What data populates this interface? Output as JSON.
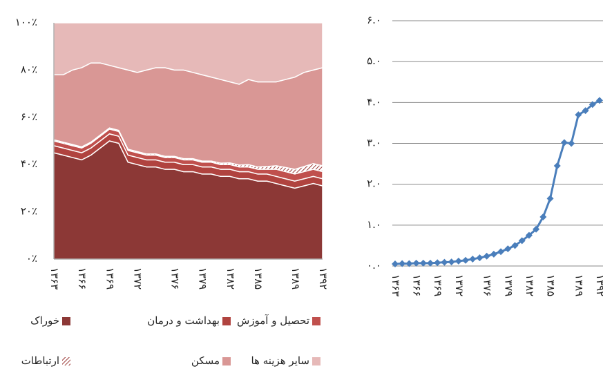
{
  "chart_data": [
    {
      "type": "area",
      "stacked": true,
      "categories": [
        "۱۳۶۳",
        null,
        null,
        "۱۳۶۶",
        null,
        null,
        "۱۳۶۹",
        null,
        null,
        "۱۳۷۲",
        null,
        null,
        null,
        "۱۳۷۶",
        null,
        null,
        "۱۳۷۹",
        null,
        null,
        "۱۳۸۲",
        null,
        null,
        "۱۳۸۵",
        null,
        null,
        null,
        "۱۳۸۹",
        null,
        null,
        "۱۳۹۲"
      ],
      "series": [
        {
          "name": "خوراک",
          "color": "#8c3836",
          "values": [
            45,
            44,
            43,
            42,
            44,
            47,
            50,
            49,
            41,
            40,
            39,
            39,
            38,
            38,
            37,
            37,
            36,
            36,
            35,
            35,
            34,
            34,
            33,
            33,
            32,
            31,
            30,
            31,
            32,
            31
          ]
        },
        {
          "name": "بهداشت و درمان",
          "color": "#b0433f",
          "values": [
            3,
            3,
            3,
            3,
            3,
            3,
            3,
            3,
            3,
            3,
            3,
            3,
            3,
            3,
            3,
            3,
            3,
            3,
            3,
            3,
            3,
            3,
            3,
            3,
            3,
            3,
            3,
            3,
            3,
            3
          ]
        },
        {
          "name": "تحصیل و آموزش",
          "color": "#c0504d",
          "values": [
            2,
            2,
            2,
            2,
            2,
            2,
            2,
            2,
            2,
            2,
            2,
            2,
            2,
            2,
            2,
            2,
            2,
            2,
            2,
            2,
            2,
            2,
            2,
            2,
            3,
            3,
            3,
            3,
            3,
            3
          ]
        },
        {
          "name": "ارتباطات",
          "color": "#9b3b38",
          "pattern": "hatch",
          "values": [
            0.5,
            0.5,
            0.5,
            0.5,
            0.5,
            0.5,
            0.5,
            0.5,
            0.5,
            0.5,
            0.5,
            0.5,
            0.5,
            0.5,
            0.5,
            0.5,
            0.5,
            0.5,
            0.6,
            0.7,
            0.8,
            1,
            1,
            1.2,
            1.5,
            1.8,
            2,
            2.2,
            2.4,
            2.5
          ]
        },
        {
          "name": "مسکن",
          "color": "#d99795",
          "values": [
            27.5,
            28.5,
            31.5,
            33.5,
            33.5,
            30.5,
            26.5,
            26.5,
            33.5,
            33.5,
            35.5,
            36.5,
            37.5,
            36.5,
            37.5,
            36.5,
            36.5,
            35.5,
            35.4,
            34.3,
            34.2,
            36,
            36,
            35.8,
            35.5,
            37.2,
            39,
            39.8,
            39.6,
            41.5
          ]
        },
        {
          "name": "سایر هزینه ها",
          "color": "#e6b9b8",
          "values": [
            22,
            22,
            20,
            19,
            17,
            17,
            18,
            19,
            20,
            21,
            20,
            19,
            19,
            20,
            20,
            21,
            22,
            23,
            24,
            25,
            26,
            24,
            25,
            25,
            25,
            24,
            23,
            21,
            20,
            19
          ]
        }
      ],
      "ylim": [
        0,
        100
      ],
      "yticks": [
        {
          "value": 0,
          "label": "۰٪"
        },
        {
          "value": 20,
          "label": "۲۰٪"
        },
        {
          "value": 40,
          "label": "۴۰٪"
        },
        {
          "value": 60,
          "label": "۶۰٪"
        },
        {
          "value": 80,
          "label": "۸۰٪"
        },
        {
          "value": 100,
          "label": "۱۰۰٪"
        }
      ],
      "grid": false
    },
    {
      "type": "line",
      "categories": [
        "۱۳۶۳",
        null,
        null,
        "۱۳۶۶",
        null,
        null,
        "۱۳۶۹",
        null,
        null,
        "۱۳۷۲",
        null,
        null,
        null,
        "۱۳۷۶",
        null,
        null,
        "۱۳۷۹",
        null,
        null,
        "۱۳۸۲",
        null,
        null,
        "۱۳۸۵",
        null,
        null,
        null,
        "۱۳۸۹",
        null,
        null,
        "۱۳۹۲"
      ],
      "series": [
        {
          "color": "#4a7ebb",
          "values": [
            0.05,
            0.06,
            0.06,
            0.07,
            0.07,
            0.07,
            0.08,
            0.09,
            0.1,
            0.12,
            0.14,
            0.17,
            0.2,
            0.24,
            0.29,
            0.35,
            0.42,
            0.5,
            0.62,
            0.75,
            0.9,
            1.2,
            1.65,
            2.45,
            3.02,
            3.0,
            3.7,
            3.8,
            3.95,
            4.05
          ]
        }
      ],
      "ylim": [
        0,
        6
      ],
      "yticks": [
        {
          "value": 0,
          "label": "۰.۰"
        },
        {
          "value": 1,
          "label": "۱.۰"
        },
        {
          "value": 2,
          "label": "۲.۰"
        },
        {
          "value": 3,
          "label": "۳.۰"
        },
        {
          "value": 4,
          "label": "۴.۰"
        },
        {
          "value": 5,
          "label": "۵.۰"
        },
        {
          "value": 6,
          "label": "۶.۰"
        }
      ],
      "grid": true
    }
  ]
}
